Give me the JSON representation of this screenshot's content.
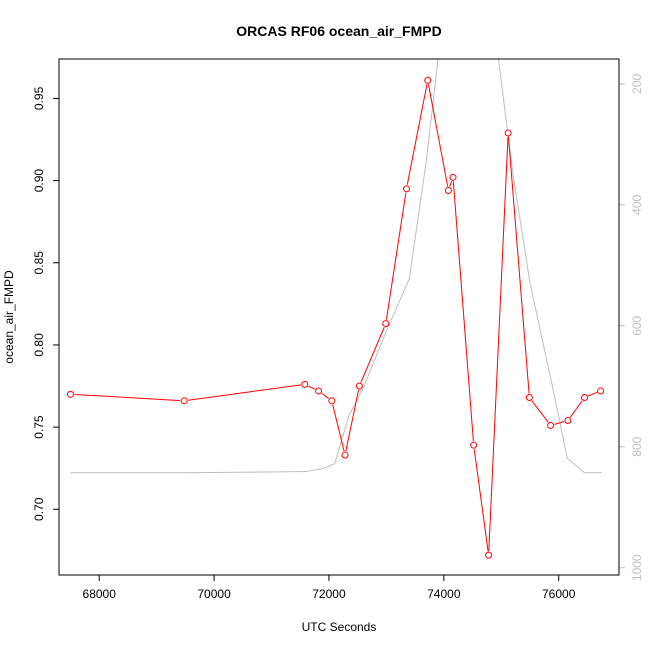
{
  "chart_data": {
    "type": "line",
    "title": "ORCAS RF06 ocean_air_FMPD",
    "xlabel": "UTC Seconds",
    "ylabel": "ocean_air_FMPD",
    "xlim": [
      67300,
      77050
    ],
    "ylim": [
      0.66,
      0.974
    ],
    "x_ticks": [
      "68000",
      "70000",
      "72000",
      "74000",
      "76000"
    ],
    "y_ticks": [
      "0.70",
      "0.75",
      "0.80",
      "0.85",
      "0.90",
      "0.95"
    ],
    "y2_ticks": [
      "200",
      "400",
      "600",
      "800",
      "1000"
    ],
    "y2_reversed": true,
    "y2lim": [
      1012,
      159
    ],
    "grid": false,
    "legend": "none",
    "colors": {
      "primary": "#ff0000",
      "secondary": "#bebebe"
    },
    "series": [
      {
        "axis": "left",
        "marker": "open-circle",
        "x": [
          67500,
          69480,
          71580,
          71820,
          72050,
          72280,
          72530,
          72990,
          73350,
          73720,
          74080,
          74160,
          74520,
          74780,
          75120,
          75490,
          75860,
          76160,
          76450,
          76730
        ],
        "y": [
          0.77,
          0.766,
          0.776,
          0.772,
          0.766,
          0.733,
          0.775,
          0.813,
          0.895,
          0.961,
          0.894,
          0.902,
          0.739,
          0.672,
          0.929,
          0.768,
          0.751,
          0.754,
          0.768,
          0.772
        ]
      },
      {
        "axis": "right",
        "marker": "none",
        "x": [
          67500,
          69500,
          71600,
          71900,
          72100,
          72350,
          72600,
          73000,
          73400,
          73700,
          73900,
          74000,
          74900,
          75200,
          75500,
          75900,
          76150,
          76450,
          76750
        ],
        "y": [
          843,
          843,
          841,
          836,
          828,
          748,
          702,
          609,
          522,
          324,
          159,
          120,
          120,
          347,
          529,
          704,
          819,
          843,
          843
        ]
      }
    ]
  }
}
